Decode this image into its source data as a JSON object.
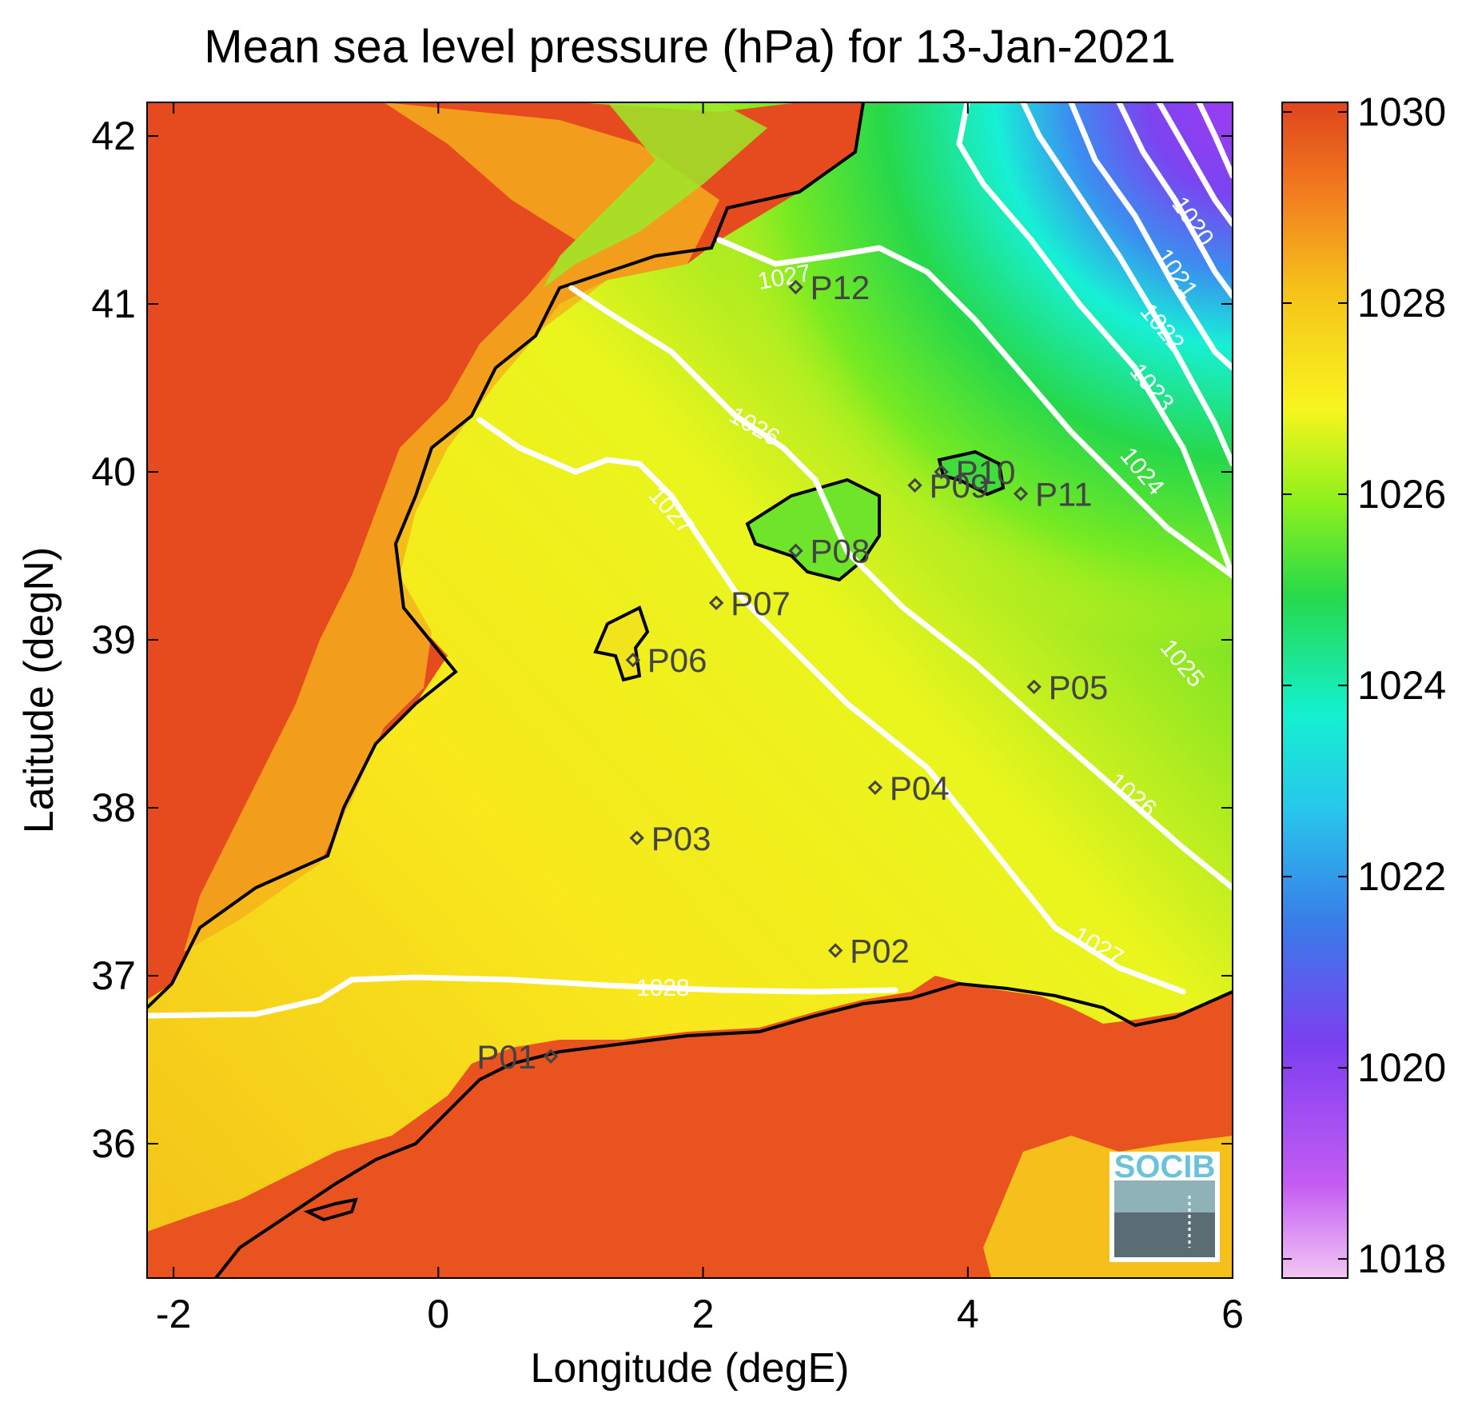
{
  "title": "Mean sea level pressure (hPa) for 13-Jan-2021",
  "xlabel": "Longitude (degE)",
  "ylabel": "Latitude (degN)",
  "xlim": [
    -2.2,
    6
  ],
  "ylim": [
    35.2,
    42.2
  ],
  "xticks": [
    "-2",
    "0",
    "2",
    "4",
    "6"
  ],
  "yticks": [
    "36",
    "37",
    "38",
    "39",
    "40",
    "41",
    "42"
  ],
  "colorbar": {
    "range": [
      1017.8,
      1030.1
    ],
    "ticks": [
      "1018",
      "1020",
      "1022",
      "1024",
      "1026",
      "1028",
      "1030"
    ]
  },
  "stations": [
    {
      "name": "P01",
      "lon": 0.85,
      "lat": 36.52
    },
    {
      "name": "P02",
      "lon": 3.0,
      "lat": 37.15
    },
    {
      "name": "P03",
      "lon": 1.5,
      "lat": 37.82
    },
    {
      "name": "P04",
      "lon": 3.3,
      "lat": 38.12
    },
    {
      "name": "P05",
      "lon": 4.5,
      "lat": 38.72
    },
    {
      "name": "P06",
      "lon": 1.47,
      "lat": 38.88
    },
    {
      "name": "P07",
      "lon": 2.1,
      "lat": 39.22
    },
    {
      "name": "P08",
      "lon": 2.7,
      "lat": 39.53
    },
    {
      "name": "P09",
      "lon": 3.6,
      "lat": 39.92
    },
    {
      "name": "P10",
      "lon": 3.8,
      "lat": 40.0
    },
    {
      "name": "P11",
      "lon": 4.4,
      "lat": 39.87
    },
    {
      "name": "P12",
      "lon": 2.7,
      "lat": 41.1
    }
  ],
  "contour_labels": [
    "1020",
    "1021",
    "1022",
    "1023",
    "1024",
    "1025",
    "1026",
    "1026",
    "1027",
    "1027",
    "1027",
    "1028"
  ],
  "logo": "SOCIB",
  "colors": {
    "high": "#e5461f",
    "mid_high": "#f3c51a",
    "mid": "#fff61f",
    "mid_low": "#2ad83c",
    "low": "#17f3d8",
    "lower": "#2c9bf0",
    "lowest": "#9a3df2",
    "min": "#efb8f0",
    "contour": "#ffffff",
    "coast": "#000000"
  }
}
